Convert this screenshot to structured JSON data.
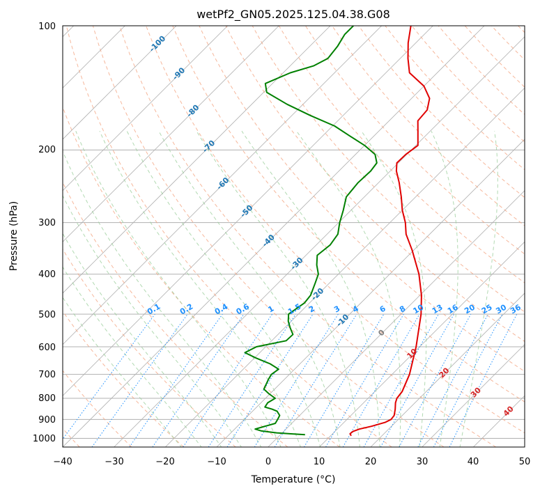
{
  "chart_data": {
    "type": "skew-t",
    "title": "wetPf2_GN05.2025.125.04.38.G08",
    "xlabel": "Temperature (°C)",
    "ylabel": "Pressure (hPa)",
    "xlim": [
      -40,
      50
    ],
    "ylim": [
      1050,
      100
    ],
    "x_ticks": [
      "−40",
      "−30",
      "−20",
      "−10",
      "0",
      "10",
      "20",
      "30",
      "40",
      "50"
    ],
    "y_ticks": [
      "100",
      "200",
      "300",
      "400",
      "500",
      "600",
      "700",
      "800",
      "900",
      "1000"
    ],
    "grid": true,
    "colors": {
      "temperature": "#e00000",
      "dewpoint": "#008000",
      "isotherm": "#b0b0b0",
      "dry_adiabat": "#f4a582",
      "moist_adiabat": "#9ecf9e",
      "mixing_ratio": "#1e90ff",
      "isotherm_label": "#1f77b4",
      "saturated_label": "#d62728"
    },
    "series": [
      {
        "key": "temperature",
        "points": [
          [
            986,
            14.0
          ],
          [
            975,
            13.4
          ],
          [
            963,
            13.5
          ],
          [
            950,
            14.3
          ],
          [
            935,
            16.1
          ],
          [
            915,
            18.0
          ],
          [
            900,
            18.6
          ],
          [
            880,
            18.4
          ],
          [
            850,
            17.4
          ],
          [
            820,
            16.2
          ],
          [
            800,
            15.6
          ],
          [
            770,
            15.3
          ],
          [
            700,
            13.4
          ],
          [
            600,
            9.3
          ],
          [
            500,
            3.9
          ],
          [
            450,
            0.3
          ],
          [
            400,
            -4.3
          ],
          [
            350,
            -10.3
          ],
          [
            320,
            -14.6
          ],
          [
            300,
            -17.0
          ],
          [
            280,
            -20.0
          ],
          [
            260,
            -22.8
          ],
          [
            240,
            -26.0
          ],
          [
            225,
            -28.8
          ],
          [
            215,
            -30.3
          ],
          [
            205,
            -30.2
          ],
          [
            195,
            -29.6
          ],
          [
            180,
            -32.4
          ],
          [
            170,
            -34.4
          ],
          [
            160,
            -34.7
          ],
          [
            150,
            -36.5
          ],
          [
            140,
            -40.0
          ],
          [
            130,
            -45.4
          ],
          [
            120,
            -48.5
          ],
          [
            110,
            -51.5
          ],
          [
            100,
            -54.3
          ]
        ]
      },
      {
        "key": "dewpoint",
        "points": [
          [
            980,
            4.8
          ],
          [
            975,
            1.6
          ],
          [
            970,
            -1.1
          ],
          [
            960,
            -4.4
          ],
          [
            950,
            -6.0
          ],
          [
            940,
            -5.1
          ],
          [
            920,
            -3.2
          ],
          [
            900,
            -3.5
          ],
          [
            880,
            -3.9
          ],
          [
            860,
            -5.2
          ],
          [
            850,
            -6.6
          ],
          [
            840,
            -8.4
          ],
          [
            820,
            -8.7
          ],
          [
            800,
            -8.1
          ],
          [
            780,
            -10.2
          ],
          [
            760,
            -12.1
          ],
          [
            740,
            -12.6
          ],
          [
            720,
            -13.1
          ],
          [
            700,
            -13.5
          ],
          [
            680,
            -13.1
          ],
          [
            660,
            -15.8
          ],
          [
            640,
            -19.5
          ],
          [
            620,
            -22.9
          ],
          [
            600,
            -21.8
          ],
          [
            580,
            -17.2
          ],
          [
            560,
            -17.1
          ],
          [
            540,
            -18.9
          ],
          [
            520,
            -20.6
          ],
          [
            500,
            -21.9
          ],
          [
            470,
            -21.0
          ],
          [
            450,
            -21.3
          ],
          [
            420,
            -22.8
          ],
          [
            400,
            -23.9
          ],
          [
            380,
            -26.0
          ],
          [
            360,
            -27.8
          ],
          [
            340,
            -27.3
          ],
          [
            320,
            -27.9
          ],
          [
            300,
            -29.8
          ],
          [
            280,
            -31.5
          ],
          [
            260,
            -33.5
          ],
          [
            240,
            -34.0
          ],
          [
            225,
            -33.8
          ],
          [
            215,
            -34.2
          ],
          [
            205,
            -36.2
          ],
          [
            195,
            -40.0
          ],
          [
            185,
            -44.7
          ],
          [
            175,
            -49.6
          ],
          [
            165,
            -56.4
          ],
          [
            155,
            -63.1
          ],
          [
            145,
            -69.4
          ],
          [
            138,
            -71.4
          ],
          [
            130,
            -68.6
          ],
          [
            125,
            -65.4
          ],
          [
            120,
            -64.1
          ],
          [
            112,
            -64.6
          ],
          [
            105,
            -65.5
          ],
          [
            100,
            -65.5
          ]
        ]
      }
    ],
    "mixing_ratio_lines": [
      "0.1",
      "0.2",
      "0.4",
      "0.6",
      "1",
      "1.5",
      "2",
      "3",
      "4",
      "6",
      "8",
      "10",
      "13",
      "16",
      "20",
      "25",
      "30",
      "36"
    ],
    "isotherm_labels": [
      "-100",
      "-90",
      "-80",
      "-70",
      "-60",
      "-50",
      "-40",
      "-30",
      "-20",
      "-10",
      "0",
      "10",
      "20",
      "30",
      "40"
    ],
    "isotherm_label_values": [
      -100,
      -90,
      -80,
      -70,
      -60,
      -50,
      -40,
      -30,
      -20,
      -10,
      0,
      10,
      20,
      30,
      40
    ],
    "isotherm_label_pressures": [
      110,
      130,
      160,
      195,
      240,
      280,
      330,
      375,
      445,
      515,
      552,
      620,
      690,
      770,
      855
    ]
  }
}
